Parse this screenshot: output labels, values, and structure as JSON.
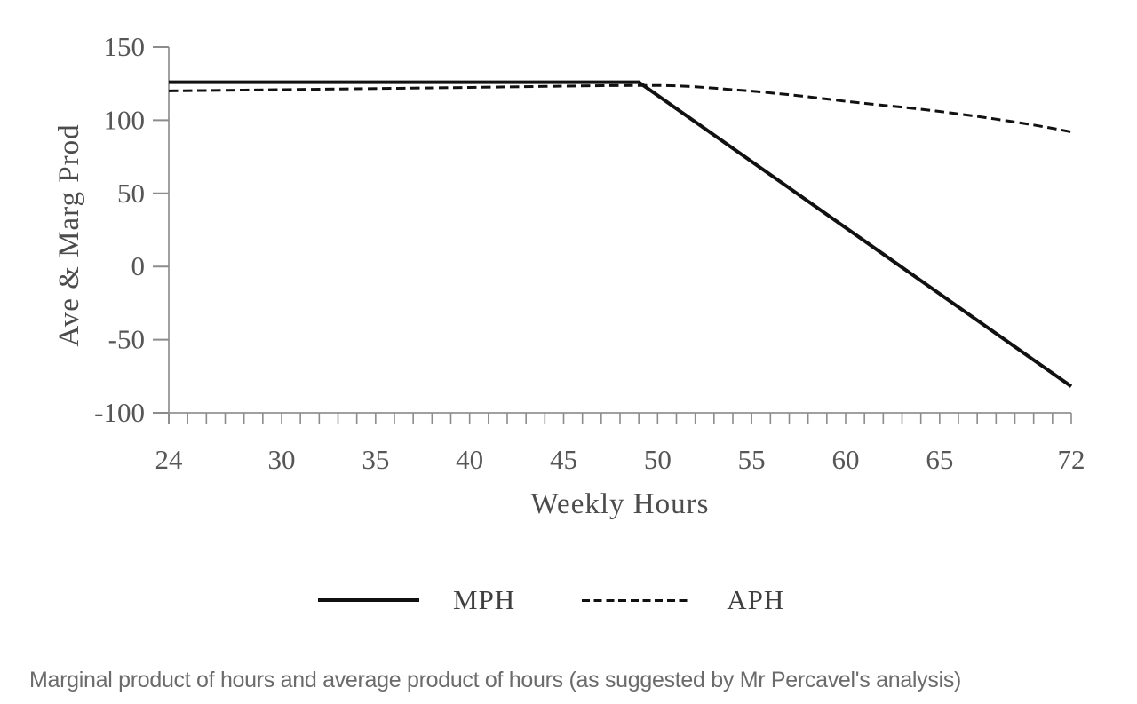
{
  "chart_data": {
    "type": "line",
    "title": "",
    "xlabel": "Weekly Hours",
    "ylabel": "Ave & Marg Prod",
    "xlim": [
      24,
      72
    ],
    "ylim": [
      -100,
      150
    ],
    "x_tick_labels": [
      24,
      30,
      35,
      40,
      45,
      50,
      55,
      60,
      65,
      72
    ],
    "x_minor_tick_step": 1,
    "y_tick_labels": [
      150,
      100,
      50,
      0,
      -50,
      -100
    ],
    "grid": false,
    "legend_position": "bottom",
    "series": [
      {
        "name": "MPH",
        "style": "solid",
        "points": [
          [
            24,
            126
          ],
          [
            49,
            126
          ],
          [
            72,
            -82
          ]
        ]
      },
      {
        "name": "APH",
        "style": "dashed",
        "points": [
          [
            24,
            120
          ],
          [
            28,
            120.6
          ],
          [
            32,
            121.2
          ],
          [
            36,
            121.8
          ],
          [
            40,
            122.4
          ],
          [
            44,
            123.1
          ],
          [
            47,
            123.6
          ],
          [
            49,
            123.8
          ],
          [
            50,
            123.8
          ],
          [
            51,
            123.5
          ],
          [
            52,
            122.9
          ],
          [
            53,
            121.9
          ],
          [
            54,
            120.9
          ],
          [
            55,
            119.9
          ],
          [
            56,
            118.7
          ],
          [
            57,
            117.4
          ],
          [
            58,
            116.0
          ],
          [
            59,
            114.5
          ],
          [
            60,
            112.9
          ],
          [
            61,
            111.5
          ],
          [
            62,
            110.2
          ],
          [
            63,
            108.9
          ],
          [
            64,
            107.5
          ],
          [
            65,
            106.0
          ],
          [
            66,
            104.3
          ],
          [
            67,
            102.6
          ],
          [
            68,
            100.7
          ],
          [
            69,
            98.8
          ],
          [
            70,
            96.7
          ],
          [
            71,
            94.5
          ],
          [
            72,
            92
          ]
        ]
      }
    ]
  },
  "legend": {
    "items": [
      {
        "label": "MPH",
        "style": "solid"
      },
      {
        "label": "APH",
        "style": "dashed"
      }
    ]
  },
  "caption": "Marginal product of hours and average product of hours (as suggested by Mr Percavel's analysis)",
  "colors": {
    "line": "#111111",
    "axis": "#a0a0a0",
    "tick": "#8c8c8c",
    "tick_label": "#565656",
    "axis_title": "#4c4c4c",
    "caption": "#6b6b6b",
    "background": "#ffffff"
  }
}
